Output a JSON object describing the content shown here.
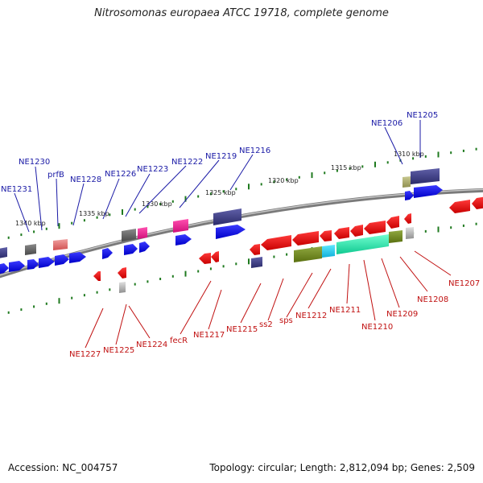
{
  "title": "Nitrosomonas europaea ATCC 19718, complete genome",
  "accession": "Accession: NC_004757",
  "stats": "Topology: circular; Length: 2,812,094 bp; Genes: 2,509",
  "scale_labels": [
    "1340 kbp",
    "1335 kbp",
    "1330 kbp",
    "1325 kbp",
    "1320 kbp",
    "1315 kbp",
    "1310 kbp"
  ],
  "top_labels": [
    "NE1231",
    "NE1230",
    "prfB",
    "NE1228",
    "NE1226",
    "NE1223",
    "NE1222",
    "NE1219",
    "NE1216",
    "NE1206",
    "NE1205"
  ],
  "bottom_labels": [
    "NE1227",
    "NE1225",
    "NE1224",
    "fecR",
    "NE1217",
    "NE1215",
    "ss2",
    "sps",
    "NE1212",
    "NE1211",
    "NE1210",
    "NE1209",
    "NE1208",
    "NE1207"
  ],
  "colors": {
    "forward": "#1010ee",
    "reverse": "#ee1010",
    "top_label": "#1a1aa6",
    "bottom_label": "#c01010",
    "backbone": "#888888",
    "tick": "#1f7a1f"
  }
}
